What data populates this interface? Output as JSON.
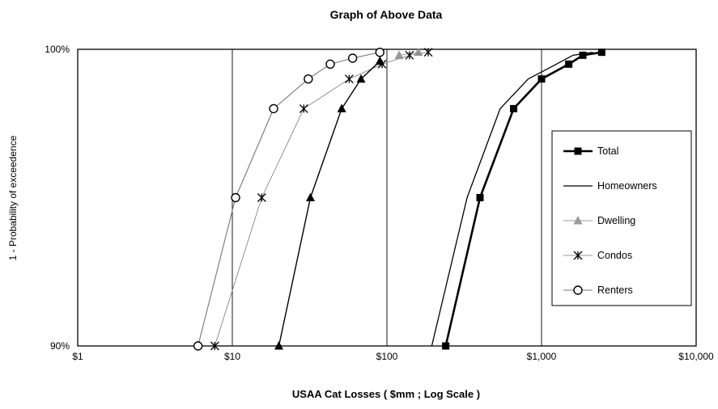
{
  "chart_data": {
    "type": "line",
    "title": "Graph of Above Data",
    "xlabel": "USAA Cat Losses ( $mm ; Log Scale )",
    "ylabel": "1 - Probability of exceedence",
    "x_scale": "log",
    "xlim": [
      1,
      10000
    ],
    "ylim": [
      0.9,
      1.0
    ],
    "x_ticks": [
      1,
      10,
      100,
      1000,
      10000
    ],
    "x_tick_labels": [
      "$1",
      "$10",
      "$100",
      "$1,000",
      "$10,000"
    ],
    "y_ticks": [
      0.9,
      1.0
    ],
    "y_tick_labels": [
      "90%",
      "100%"
    ],
    "grid": "vertical",
    "legend_position": "right",
    "series": [
      {
        "name": "Total",
        "color": "#000000",
        "marker": "square",
        "x": [
          240,
          400,
          660,
          1000,
          1500,
          1850,
          2450
        ],
        "y": [
          0.9,
          0.95,
          0.98,
          0.99,
          0.995,
          0.998,
          0.999
        ]
      },
      {
        "name": "Homeowners",
        "color": "#000000",
        "marker": "none",
        "x": [
          195,
          330,
          540,
          820,
          1250,
          1600,
          2150
        ],
        "y": [
          0.9,
          0.95,
          0.98,
          0.99,
          0.995,
          0.998,
          0.999
        ]
      },
      {
        "name": "Dwelling",
        "color": "#999999",
        "marker": "triangle",
        "x": [
          120,
          160
        ],
        "y": [
          0.998,
          0.999
        ]
      },
      {
        "name": "Condos",
        "color": "#000000",
        "marker": "asterisk",
        "x": [
          7.7,
          15.5,
          29,
          57,
          93,
          140,
          185
        ],
        "y": [
          0.9,
          0.95,
          0.98,
          0.99,
          0.995,
          0.998,
          0.999
        ]
      },
      {
        "name": "Renters",
        "color": "#000000",
        "marker": "circle",
        "x": [
          6,
          10.5,
          18.5,
          31,
          43,
          60,
          90
        ],
        "y": [
          0.9,
          0.95,
          0.98,
          0.99,
          0.995,
          0.997,
          0.999
        ]
      },
      {
        "name": "",
        "color": "#000000",
        "marker": "triangle",
        "x": [
          20,
          32,
          51,
          68,
          90
        ],
        "y": [
          0.9,
          0.95,
          0.98,
          0.99,
          0.996
        ]
      }
    ]
  }
}
